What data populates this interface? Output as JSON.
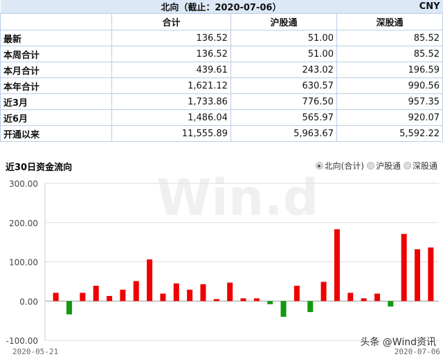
{
  "table": {
    "title": "北向（截止：2020-07-06）",
    "currency": "CNY",
    "columns": [
      "合计",
      "沪股通",
      "深股通"
    ],
    "rows": [
      {
        "label": "最新",
        "values": [
          "136.52",
          "51.00",
          "85.52"
        ]
      },
      {
        "label": "本周合计",
        "values": [
          "136.52",
          "51.00",
          "85.52"
        ]
      },
      {
        "label": "本月合计",
        "values": [
          "439.61",
          "243.02",
          "196.59"
        ]
      },
      {
        "label": "本年合计",
        "values": [
          "1,621.12",
          "630.57",
          "990.56"
        ]
      },
      {
        "label": "近3月",
        "values": [
          "1,733.86",
          "776.50",
          "957.35"
        ]
      },
      {
        "label": "近6月",
        "values": [
          "1,486.04",
          "565.97",
          "920.07"
        ]
      },
      {
        "label": "开通以来",
        "values": [
          "11,555.89",
          "5,963.67",
          "5,592.22"
        ]
      }
    ]
  },
  "chart_title": "近30日资金流向",
  "radio_options": [
    {
      "label": "北向(合计)",
      "selected": true
    },
    {
      "label": "沪股通",
      "selected": false
    },
    {
      "label": "深股通",
      "selected": false
    }
  ],
  "watermark": "Win.d",
  "footer_watermark": "头条 @Wind资讯",
  "chart_data": {
    "type": "bar",
    "ylim": [
      -100,
      300
    ],
    "yticks": [
      "300.00",
      "200.00",
      "100.00",
      "0.00",
      "-100.00"
    ],
    "x_start_label": "2020-05-21",
    "x_end_label": "2020-07-06",
    "grid": true,
    "colors": {
      "positive": "#ee0000",
      "negative": "#119911"
    },
    "values": [
      21,
      -34,
      21,
      39,
      13,
      29,
      51,
      106,
      19,
      45,
      29,
      43,
      5,
      47,
      7,
      7,
      -8,
      -40,
      39,
      -28,
      49,
      183,
      21,
      7,
      19,
      -14,
      171,
      132,
      136.52
    ]
  }
}
